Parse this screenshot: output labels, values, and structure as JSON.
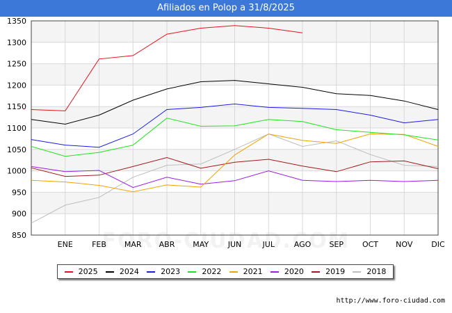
{
  "title": "Afiliados en Polop a 31/8/2025",
  "footer_url": "http://www.foro-ciudad.com",
  "watermark": "FORO-CIUDAD.COM",
  "chart_data": {
    "type": "line",
    "categories": [
      "",
      "ENE",
      "FEB",
      "MAR",
      "ABR",
      "MAY",
      "JUN",
      "JUL",
      "AGO",
      "SEP",
      "OCT",
      "NOV",
      "DIC"
    ],
    "ylim": [
      850,
      1350
    ],
    "yticks": [
      850,
      900,
      950,
      1000,
      1050,
      1100,
      1150,
      1200,
      1250,
      1300,
      1350
    ],
    "grid": true,
    "legend_position": "bottom",
    "series": [
      {
        "name": "2025",
        "color": "#e8101a",
        "values": [
          1143,
          1140,
          1261,
          1269,
          1319,
          1333,
          1339,
          1333,
          1322,
          null,
          null,
          null,
          null
        ]
      },
      {
        "name": "2024",
        "color": "#000000",
        "values": [
          1120,
          1109,
          1130,
          1165,
          1191,
          1208,
          1211,
          1203,
          1195,
          1180,
          1176,
          1163,
          1143
        ]
      },
      {
        "name": "2023",
        "color": "#1a1aea",
        "values": [
          1073,
          1060,
          1055,
          1086,
          1143,
          1148,
          1156,
          1148,
          1146,
          1143,
          1130,
          1112,
          1120
        ]
      },
      {
        "name": "2022",
        "color": "#1ae61a",
        "values": [
          1057,
          1034,
          1043,
          1060,
          1123,
          1104,
          1105,
          1120,
          1115,
          1096,
          1090,
          1084,
          1072
        ]
      },
      {
        "name": "2021",
        "color": "#f5a200",
        "values": [
          978,
          974,
          966,
          951,
          967,
          962,
          1037,
          1086,
          1071,
          1064,
          1086,
          1085,
          1057
        ]
      },
      {
        "name": "2020",
        "color": "#a01ae6",
        "values": [
          1010,
          998,
          1001,
          961,
          985,
          969,
          977,
          1000,
          978,
          975,
          978,
          975,
          978
        ]
      },
      {
        "name": "2019",
        "color": "#a01a1a",
        "values": [
          1007,
          987,
          990,
          1010,
          1031,
          1006,
          1020,
          1027,
          1011,
          998,
          1021,
          1023,
          1005
        ]
      },
      {
        "name": "2018",
        "color": "#bdbdbd",
        "values": [
          878,
          920,
          938,
          985,
          1013,
          1016,
          1050,
          1086,
          1057,
          1070,
          1038,
          1013,
          1010
        ]
      }
    ]
  }
}
